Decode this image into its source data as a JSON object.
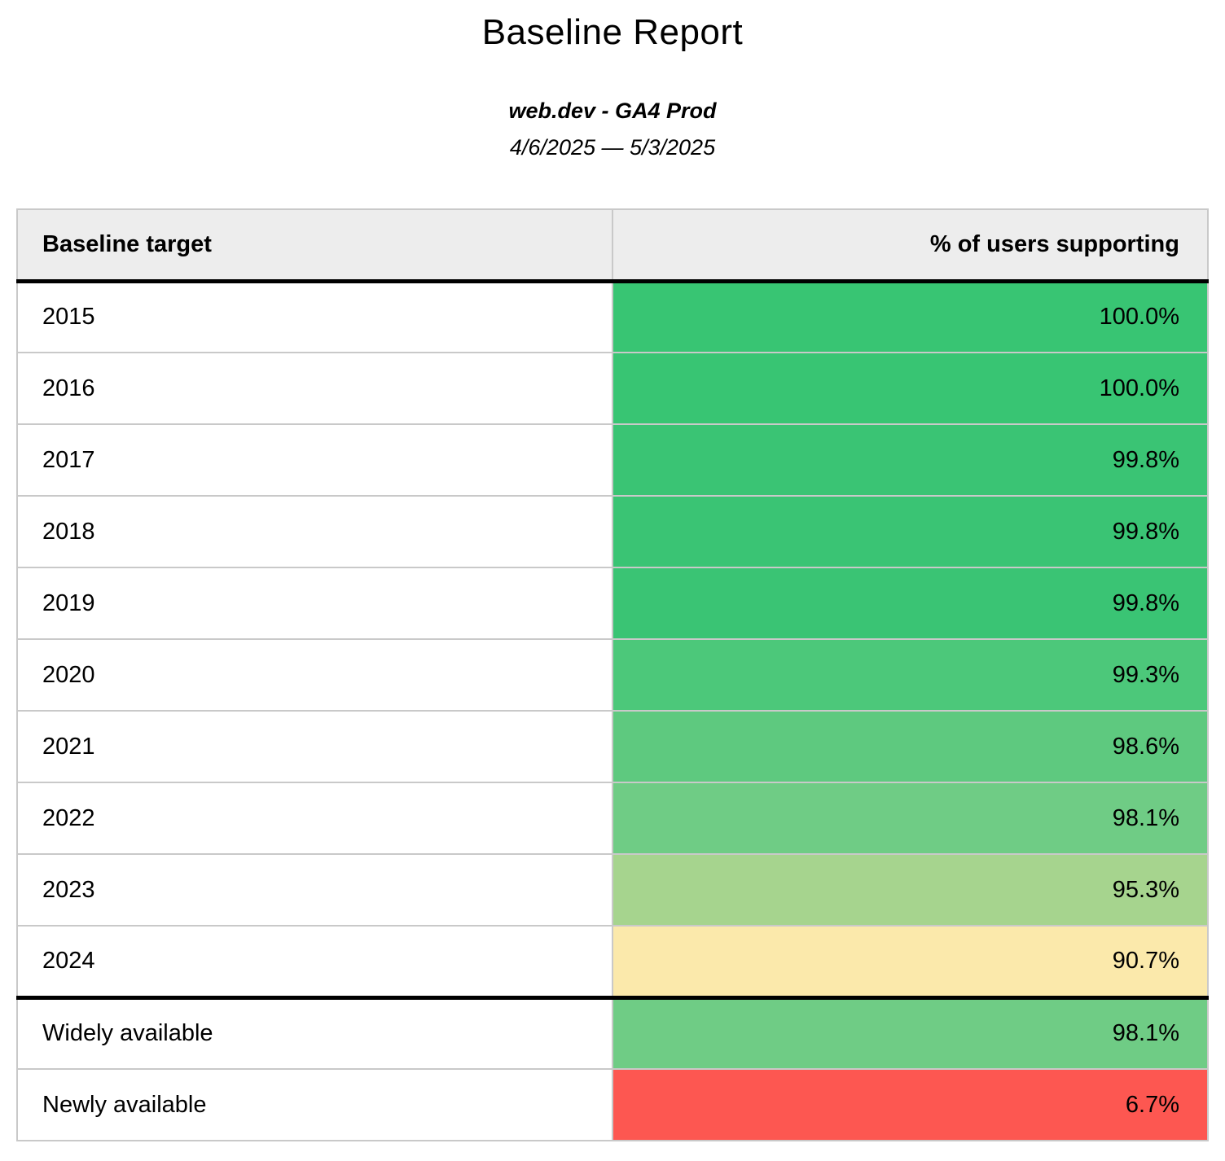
{
  "report": {
    "title": "Baseline Report",
    "subtitle": "web.dev - GA4 Prod",
    "date_range": "4/6/2025 — 5/3/2025"
  },
  "table": {
    "columns": [
      {
        "label": "Baseline target"
      },
      {
        "label": "% of users supporting"
      }
    ],
    "rows": [
      {
        "target": "2015",
        "value": "100.0%",
        "color": "#38c573",
        "section_start": false
      },
      {
        "target": "2016",
        "value": "100.0%",
        "color": "#38c573",
        "section_start": false
      },
      {
        "target": "2017",
        "value": "99.8%",
        "color": "#3ac474",
        "section_start": false
      },
      {
        "target": "2018",
        "value": "99.8%",
        "color": "#3ac474",
        "section_start": false
      },
      {
        "target": "2019",
        "value": "99.8%",
        "color": "#3ac474",
        "section_start": false
      },
      {
        "target": "2020",
        "value": "99.3%",
        "color": "#4cc87a",
        "section_start": false
      },
      {
        "target": "2021",
        "value": "98.6%",
        "color": "#5ec97f",
        "section_start": false
      },
      {
        "target": "2022",
        "value": "98.1%",
        "color": "#6fcc85",
        "section_start": false
      },
      {
        "target": "2023",
        "value": "95.3%",
        "color": "#a6d48e",
        "section_start": false
      },
      {
        "target": "2024",
        "value": "90.7%",
        "color": "#fbe9ab",
        "section_start": false
      },
      {
        "target": "Widely available",
        "value": "98.1%",
        "color": "#6fcc85",
        "section_start": true
      },
      {
        "target": "Newly available",
        "value": "6.7%",
        "color": "#fd5751",
        "section_start": false
      }
    ]
  },
  "chart_data": {
    "type": "table",
    "title": "Baseline Report",
    "subtitle": "web.dev - GA4 Prod",
    "date_range": "4/6/2025 — 5/3/2025",
    "columns": [
      "Baseline target",
      "% of users supporting"
    ],
    "categories": [
      "2015",
      "2016",
      "2017",
      "2018",
      "2019",
      "2020",
      "2021",
      "2022",
      "2023",
      "2024",
      "Widely available",
      "Newly available"
    ],
    "values": [
      100.0,
      100.0,
      99.8,
      99.8,
      99.8,
      99.3,
      98.6,
      98.1,
      95.3,
      90.7,
      98.1,
      6.7
    ],
    "unit": "%",
    "cell_colors": [
      "#38c573",
      "#38c573",
      "#3ac474",
      "#3ac474",
      "#3ac474",
      "#4cc87a",
      "#5ec97f",
      "#6fcc85",
      "#a6d48e",
      "#fbe9ab",
      "#6fcc85",
      "#fd5751"
    ],
    "color_scale": "green-to-yellow-to-red heatmap on percentage cells",
    "layout": "two-column table, value column right-aligned; thick black rule below header and above 'Widely available' row"
  }
}
